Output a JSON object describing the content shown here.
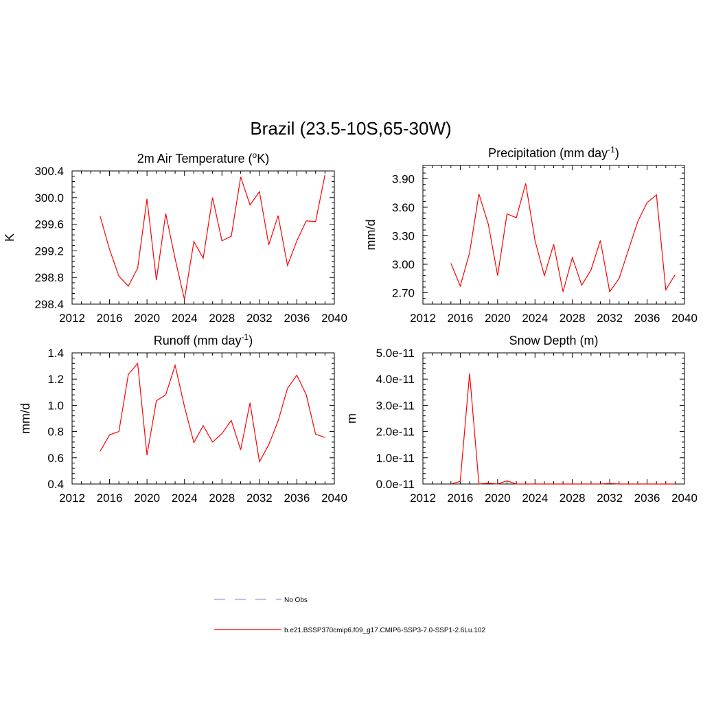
{
  "page_title": "Brazil (23.5-10S,65-30W)",
  "legend": {
    "items": [
      {
        "label": "No Obs",
        "color": "#9a9ad8",
        "dash": true
      },
      {
        "label": "b.e21.BSSP370cmip6.f09_g17.CMIP6-SSP3-7.0-SSP1-2.6Lu.102",
        "color": "#ff0000",
        "dash": false
      }
    ]
  },
  "chart_data": [
    {
      "type": "line",
      "title": "2m Air Temperature (",
      "title_sup": "o",
      "title_after": "K)",
      "ylabel": "K",
      "xlim": [
        2012,
        2040
      ],
      "ylim": [
        298.4,
        300.4
      ],
      "xticks": [
        "2012",
        "2016",
        "2020",
        "2024",
        "2028",
        "2032",
        "2036",
        "2040"
      ],
      "yticks": [
        "298.4",
        "298.8",
        "299.2",
        "299.6",
        "300.0",
        "300.4"
      ],
      "series": [
        {
          "color": "#ff0000",
          "x": [
            2015,
            2016,
            2017,
            2018,
            2019,
            2020,
            2021,
            2022,
            2023,
            2024,
            2025,
            2026,
            2027,
            2028,
            2029,
            2030,
            2031,
            2032,
            2033,
            2034,
            2035,
            2036,
            2037,
            2038,
            2039
          ],
          "y": [
            299.72,
            299.22,
            298.82,
            298.67,
            298.94,
            299.98,
            298.76,
            299.76,
            299.08,
            298.47,
            299.34,
            299.09,
            300.0,
            299.35,
            299.42,
            300.31,
            299.89,
            300.09,
            299.29,
            299.73,
            298.98,
            299.35,
            299.65,
            299.64,
            300.34
          ]
        }
      ]
    },
    {
      "type": "line",
      "title": "Precipitation (mm day",
      "title_sup": "-1",
      "title_after": ")",
      "ylabel": "mm/d",
      "xlim": [
        2012,
        2040
      ],
      "ylim": [
        2.58,
        4.04
      ],
      "xticks": [
        "2012",
        "2016",
        "2020",
        "2024",
        "2028",
        "2032",
        "2036",
        "2040"
      ],
      "yticks": [
        "2.70",
        "3.00",
        "3.30",
        "3.60",
        "3.90"
      ],
      "series": [
        {
          "color": "#ff0000",
          "x": [
            2015,
            2016,
            2017,
            2018,
            2019,
            2020,
            2021,
            2022,
            2023,
            2024,
            2025,
            2026,
            2027,
            2028,
            2029,
            2030,
            2031,
            2032,
            2033,
            2034,
            2035,
            2036,
            2037,
            2038,
            2039
          ],
          "y": [
            3.01,
            2.77,
            3.12,
            3.74,
            3.42,
            2.88,
            3.53,
            3.49,
            3.85,
            3.25,
            2.88,
            3.21,
            2.71,
            3.07,
            2.78,
            2.94,
            3.25,
            2.71,
            2.85,
            3.15,
            3.45,
            3.65,
            3.73,
            2.73,
            2.89
          ]
        }
      ]
    },
    {
      "type": "line",
      "title": "Runoff (mm day",
      "title_sup": "-1",
      "title_after": ")",
      "ylabel": "mm/d",
      "xlim": [
        2012,
        2040
      ],
      "ylim": [
        0.4,
        1.4
      ],
      "xticks": [
        "2012",
        "2016",
        "2020",
        "2024",
        "2028",
        "2032",
        "2036",
        "2040"
      ],
      "yticks": [
        "0.4",
        "0.6",
        "0.8",
        "1.0",
        "1.2",
        "1.4"
      ],
      "series": [
        {
          "color": "#ff0000",
          "x": [
            2015,
            2016,
            2017,
            2018,
            2019,
            2020,
            2021,
            2022,
            2023,
            2024,
            2025,
            2026,
            2027,
            2028,
            2029,
            2030,
            2031,
            2032,
            2033,
            2034,
            2035,
            2036,
            2037,
            2038,
            2039
          ],
          "y": [
            0.65,
            0.775,
            0.8,
            1.235,
            1.32,
            0.62,
            1.035,
            1.08,
            1.305,
            0.99,
            0.715,
            0.845,
            0.72,
            0.785,
            0.885,
            0.66,
            1.02,
            0.57,
            0.7,
            0.88,
            1.13,
            1.23,
            1.08,
            0.78,
            0.755
          ]
        }
      ]
    },
    {
      "type": "line",
      "title": "Snow Depth (m)",
      "title_sup": "",
      "title_after": "",
      "ylabel": "m",
      "xlim": [
        2012,
        2040
      ],
      "ylim": [
        0,
        5e-11
      ],
      "xticks": [
        "2012",
        "2016",
        "2020",
        "2024",
        "2028",
        "2032",
        "2036",
        "2040"
      ],
      "yticks": [
        "0.0e-11",
        "1.0e-11",
        "2.0e-11",
        "3.0e-11",
        "4.0e-11",
        "5.0e-11"
      ],
      "series": [
        {
          "color": "#ff0000",
          "x": [
            2015,
            2016,
            2017,
            2018,
            2019,
            2020,
            2021,
            2022,
            2023,
            2024,
            2025,
            2026,
            2027,
            2028,
            2029,
            2030,
            2031,
            2032,
            2033,
            2034,
            2035,
            2036,
            2037,
            2038,
            2039
          ],
          "y": [
            0,
            1e-12,
            4.22e-11,
            0,
            3e-13,
            0,
            1.2e-12,
            0,
            0,
            0,
            0,
            0,
            0,
            0,
            0,
            0,
            0,
            2e-13,
            0,
            0,
            0,
            0,
            0,
            0,
            0
          ]
        }
      ]
    }
  ]
}
